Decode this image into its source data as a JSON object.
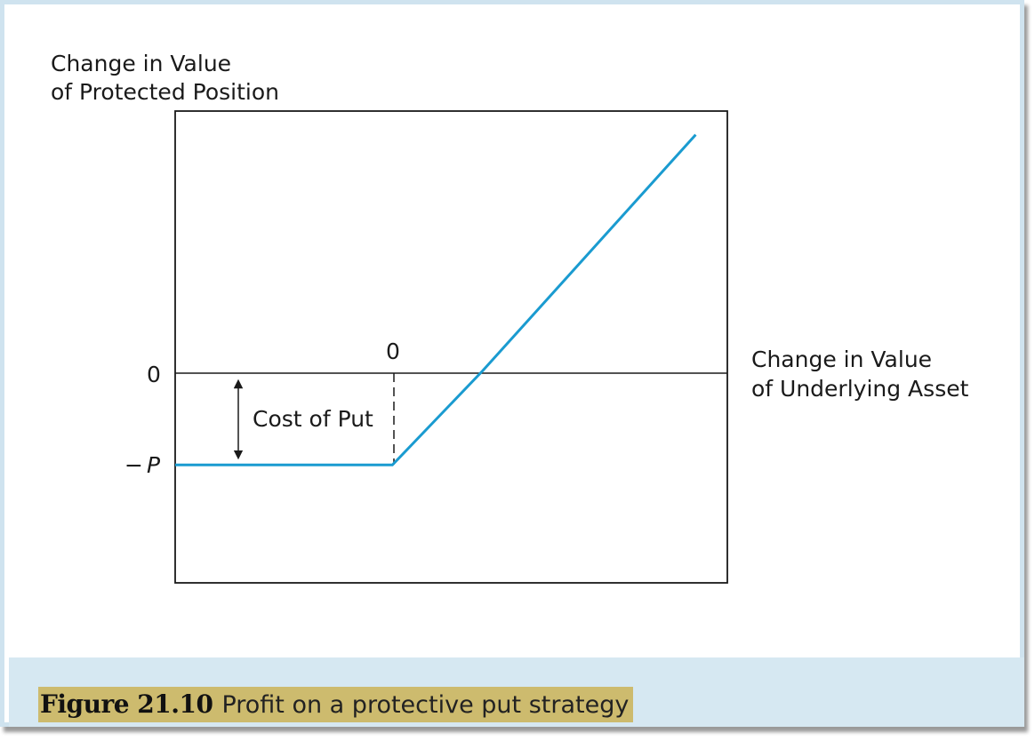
{
  "chart_data": {
    "type": "line",
    "ylabel_line1": "Change in Value",
    "ylabel_line2": "of Protected Position",
    "xlabel_line1": "Change in Value",
    "xlabel_line2": "of Underlying Asset",
    "x_zero_label": "0",
    "y_zero_label": "0",
    "y_minus_label_sign": "−",
    "y_minus_label_var": "P",
    "annotation": "Cost of Put",
    "series": [
      {
        "color": "#1a9bd0",
        "points": [
          [
            -2.4,
            -1
          ],
          [
            0,
            -1
          ],
          [
            1,
            0
          ],
          [
            3.35,
            2.5
          ]
        ]
      }
    ],
    "xlim": [
      -2.4,
      3.7
    ],
    "ylim": [
      -2.25,
      2.75
    ]
  },
  "caption": {
    "figure_number": "Figure 21.10",
    "title": "Profit on a protective put strategy"
  }
}
